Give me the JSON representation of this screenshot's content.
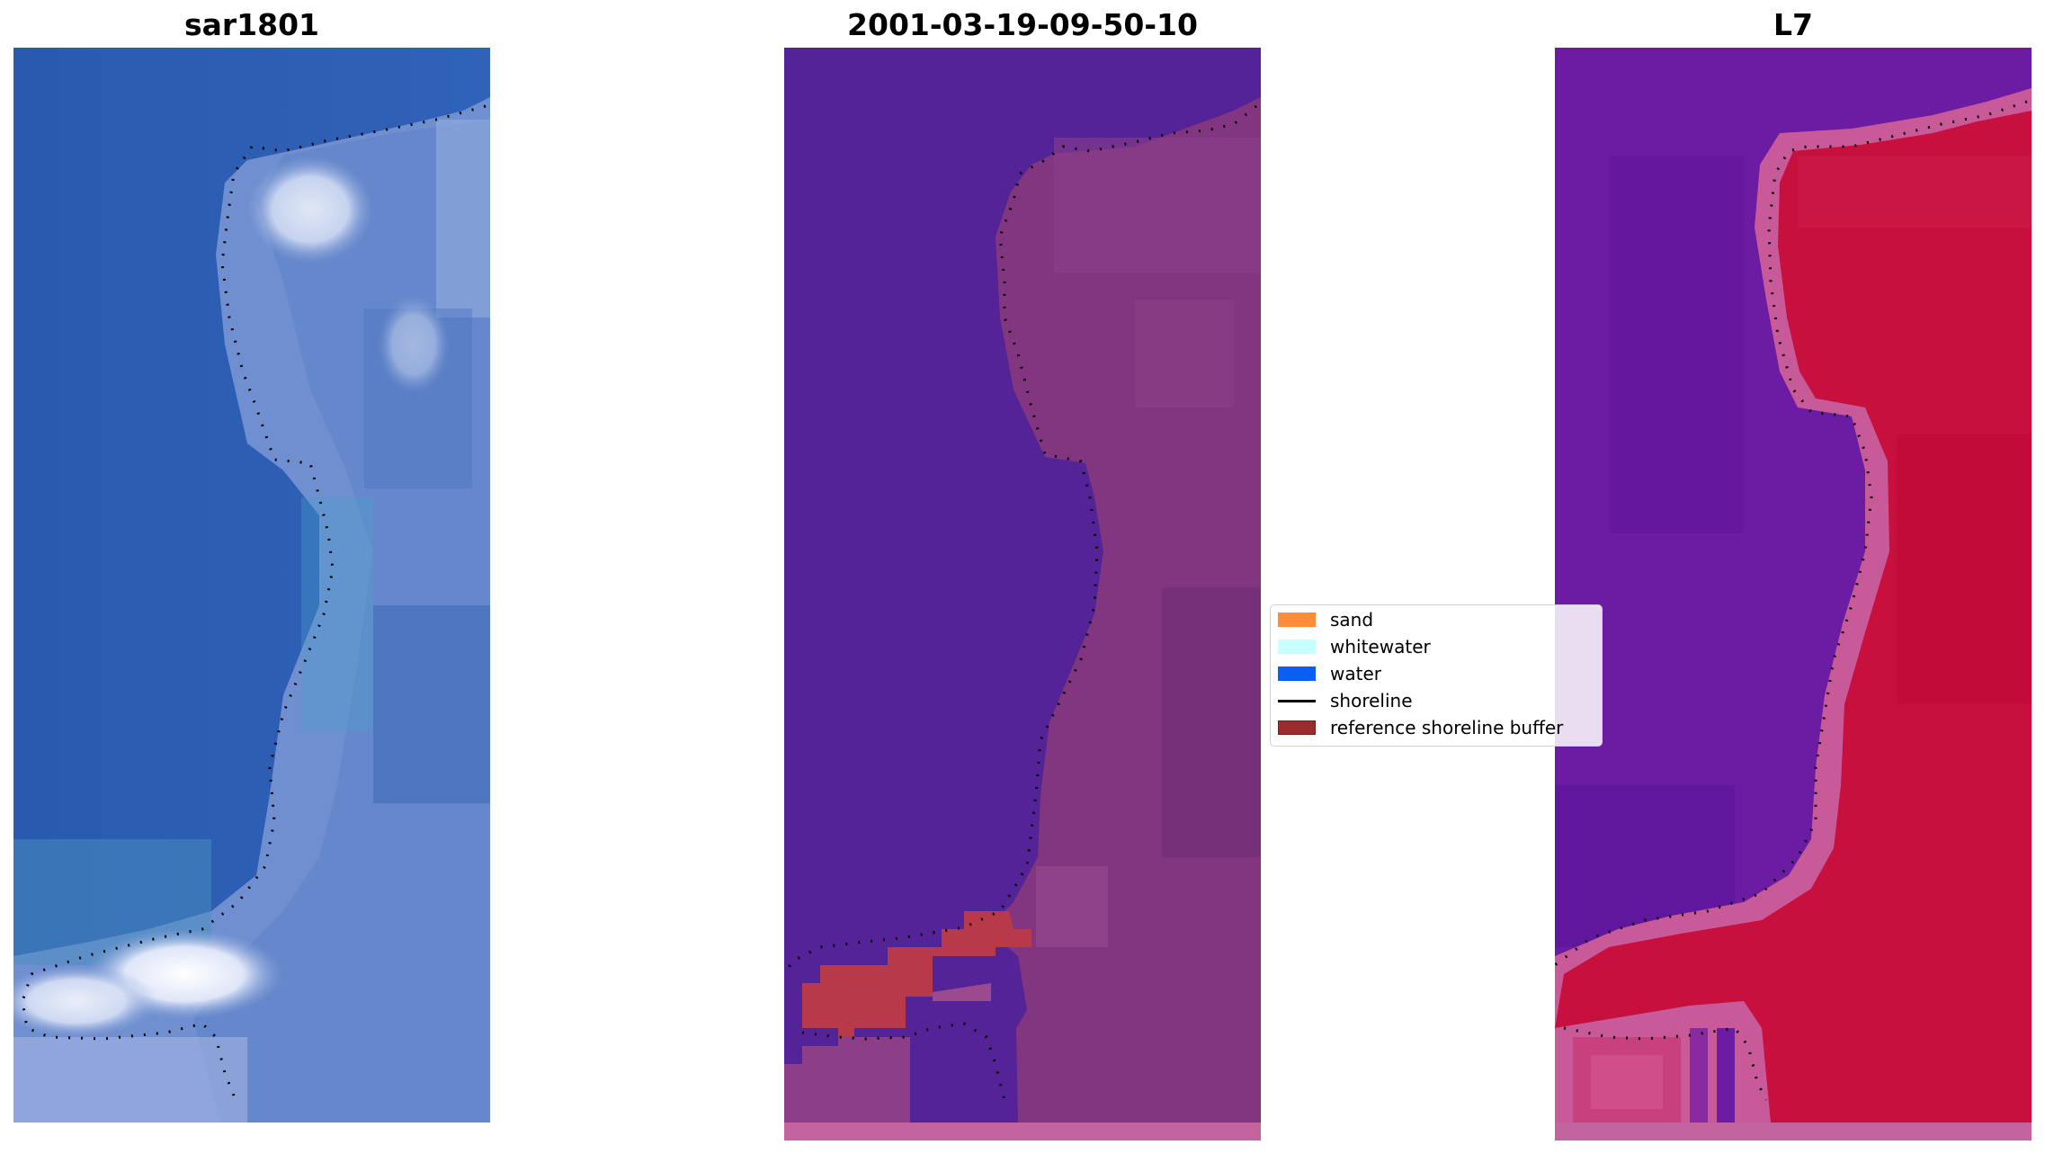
{
  "panels": [
    {
      "title": "sar1801",
      "description": "RGB satellite image with detected shoreline"
    },
    {
      "title": "2001-03-19-09-50-10",
      "description": "classified image with reference shoreline buffer"
    },
    {
      "title": "L7",
      "description": "index image with detected shoreline"
    }
  ],
  "legend": {
    "items": [
      {
        "label": "sand",
        "type": "patch",
        "color": "#ff8c3a"
      },
      {
        "label": "whitewater",
        "type": "patch",
        "color": "#c8ffff"
      },
      {
        "label": "water",
        "type": "patch",
        "color": "#0a5ff0"
      },
      {
        "label": "shoreline",
        "type": "line",
        "color": "#000000"
      },
      {
        "label": "reference shoreline buffer",
        "type": "patch",
        "color": "#9b2c2c"
      }
    ]
  },
  "colors": {
    "rgb_water": "#2c5fb4",
    "rgb_land": "#7b9ad6",
    "rgb_bright": "#f2f4ff",
    "class_water": "#532397",
    "class_land": "#82367f",
    "class_buffer": "#b83a4a",
    "class_bottom_strip": "#c4649e",
    "index_water": "#6c1ba3",
    "index_land": "#c8103e",
    "index_edge": "#c85a9a"
  }
}
